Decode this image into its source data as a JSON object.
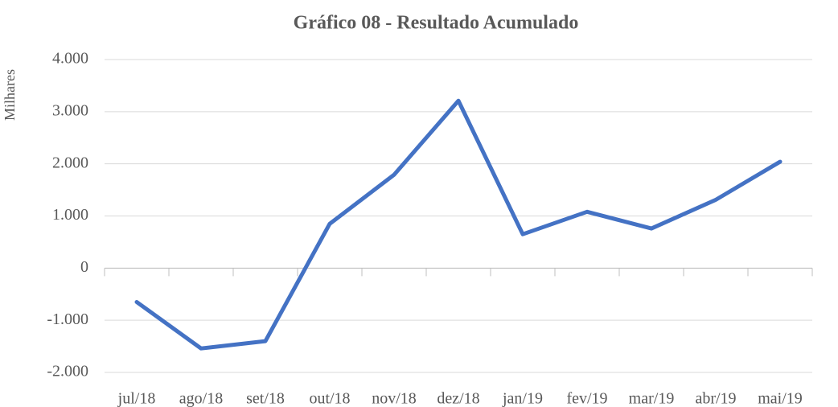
{
  "chart_data": {
    "type": "line",
    "title": "Gráfico 08 - Resultado Acumulado",
    "y_label": "Milhares",
    "categories": [
      "jul/18",
      "ago/18",
      "set/18",
      "out/18",
      "nov/18",
      "dez/18",
      "jan/19",
      "fev/19",
      "mar/19",
      "abr/19",
      "mai/19"
    ],
    "series": [
      {
        "name": "Resultado Acumulado",
        "color": "#4472c4",
        "values": [
          -650,
          -1540,
          -1400,
          850,
          1790,
          3210,
          650,
          1080,
          760,
          1310,
          2040
        ]
      }
    ],
    "ylim": [
      -2000,
      4000
    ],
    "yticks": [
      {
        "value": -2000,
        "label": "-2.000"
      },
      {
        "value": -1000,
        "label": "-1.000"
      },
      0,
      {
        "value": 1000,
        "label": "1.000"
      },
      {
        "value": 2000,
        "label": "2.000"
      },
      {
        "value": 3000,
        "label": "3.000"
      },
      {
        "value": 4000,
        "label": "4.000"
      }
    ],
    "grid": true
  }
}
